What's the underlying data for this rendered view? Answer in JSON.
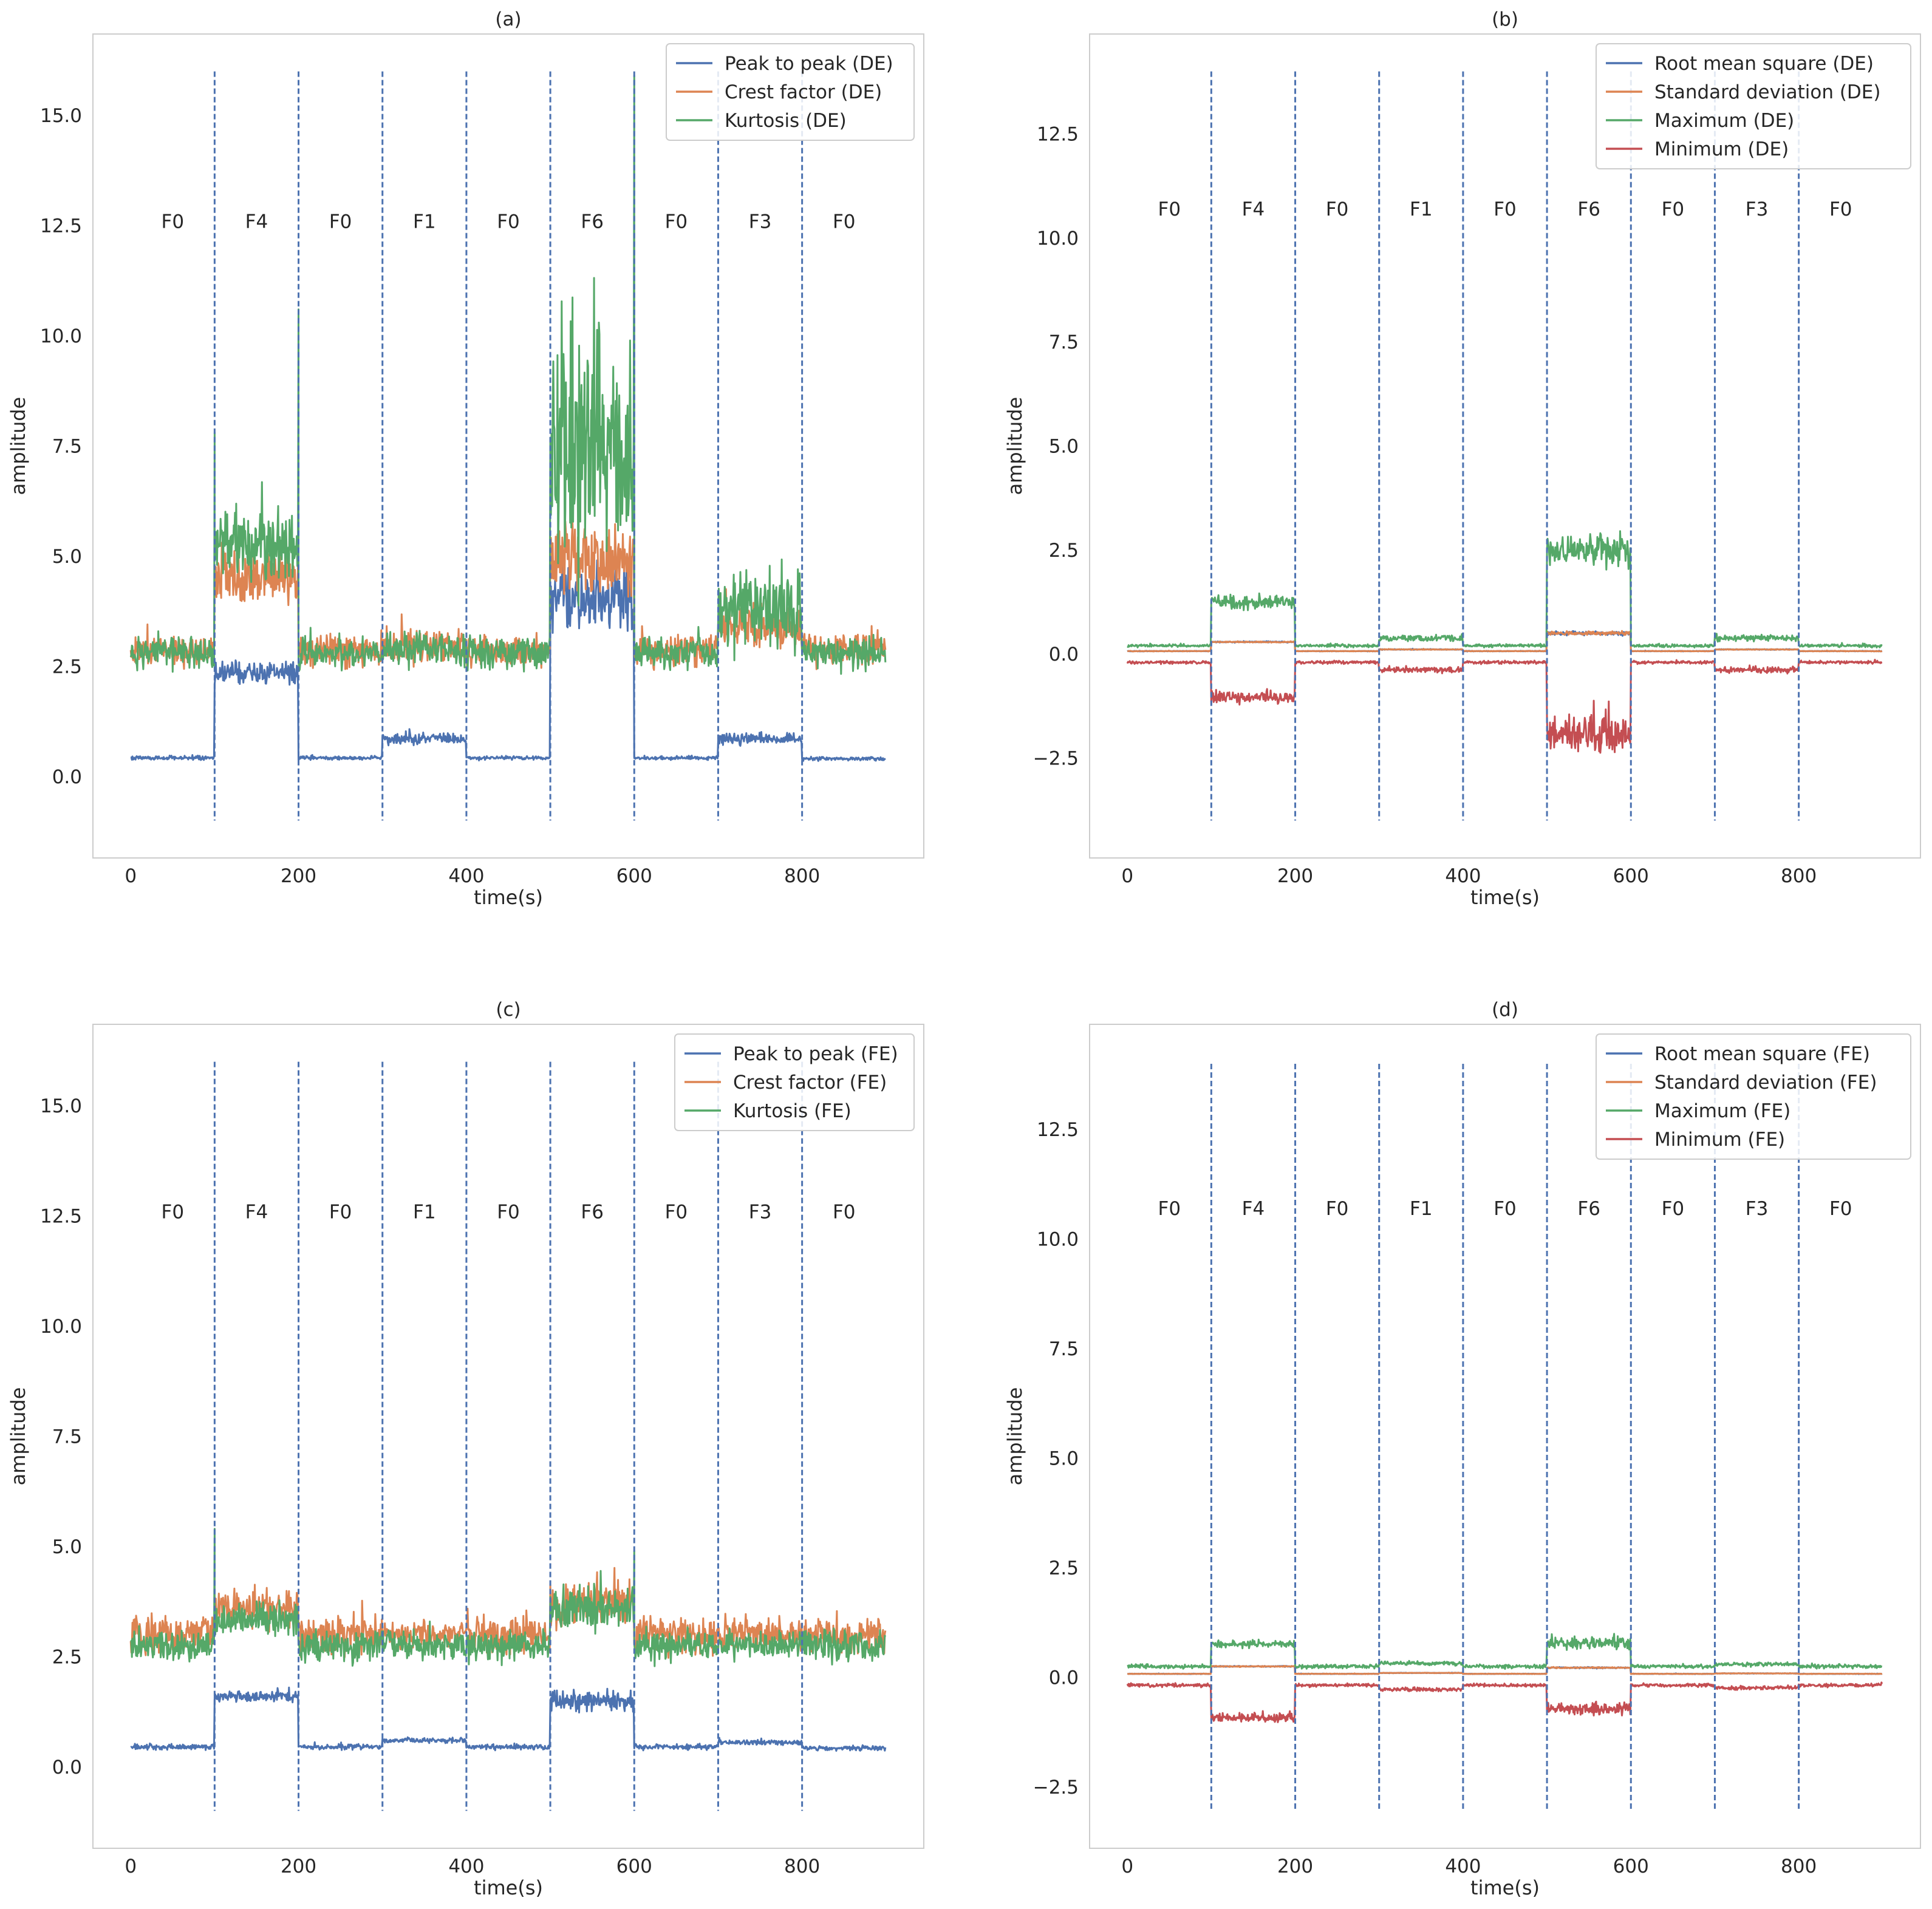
{
  "figure": {
    "panels": [
      "(a)",
      "(b)",
      "(c)",
      "(d)"
    ]
  },
  "chart_data": [
    {
      "type": "line",
      "title": "(a)",
      "xlabel": "time(s)",
      "ylabel": "amplitude",
      "xlim": [
        -45,
        945
      ],
      "ylim": [
        -1.85,
        16.85
      ],
      "xticks": [
        0,
        200,
        400,
        600,
        800
      ],
      "yticks": [
        0.0,
        2.5,
        5.0,
        7.5,
        10.0,
        12.5,
        15.0
      ],
      "ytick_labels": [
        "0.0",
        "2.5",
        "5.0",
        "7.5",
        "10.0",
        "12.5",
        "15.0"
      ],
      "grid": false,
      "legend_position": "top-right",
      "fault_boundaries": [
        100,
        200,
        300,
        400,
        500,
        600,
        700,
        800
      ],
      "boundary_range": [
        -1.0,
        16.0
      ],
      "segment_labels": [
        "F0",
        "F4",
        "F0",
        "F1",
        "F0",
        "F6",
        "F0",
        "F3",
        "F0"
      ],
      "segment_label_y": 12.6,
      "x_segments": [
        0,
        100,
        200,
        300,
        400,
        500,
        600,
        700,
        800,
        900
      ],
      "series": [
        {
          "name": "Peak to peak (DE)",
          "color": "#4C72B0",
          "segment_means": [
            0.42,
            2.35,
            0.42,
            0.85,
            0.42,
            4.1,
            0.42,
            0.85,
            0.4
          ],
          "segment_noise": [
            0.03,
            0.18,
            0.03,
            0.09,
            0.03,
            0.5,
            0.03,
            0.09,
            0.03
          ],
          "spikes": []
        },
        {
          "name": "Crest factor (DE)",
          "color": "#DD8452",
          "segment_means": [
            2.85,
            4.5,
            2.85,
            2.95,
            2.85,
            5.0,
            2.85,
            3.4,
            2.85
          ],
          "segment_noise": [
            0.25,
            0.4,
            0.25,
            0.28,
            0.25,
            0.6,
            0.25,
            0.35,
            0.25
          ],
          "spikes": []
        },
        {
          "name": "Kurtosis (DE)",
          "color": "#55A868",
          "segment_means": [
            2.8,
            5.3,
            2.8,
            2.9,
            2.8,
            7.5,
            2.8,
            3.8,
            2.8
          ],
          "segment_noise": [
            0.25,
            0.55,
            0.25,
            0.28,
            0.25,
            1.9,
            0.25,
            0.6,
            0.25
          ],
          "spikes": [
            [
              100,
              7.8
            ],
            [
              200,
              10.6
            ],
            [
              600,
              15.9
            ]
          ]
        }
      ]
    },
    {
      "type": "line",
      "title": "(b)",
      "xlabel": "time(s)",
      "ylabel": "amplitude",
      "xlim": [
        -45,
        945
      ],
      "ylim": [
        -4.9,
        14.9
      ],
      "xticks": [
        0,
        200,
        400,
        600,
        800
      ],
      "yticks": [
        -2.5,
        0.0,
        2.5,
        5.0,
        7.5,
        10.0,
        12.5
      ],
      "ytick_labels": [
        "−2.5",
        "0.0",
        "2.5",
        "5.0",
        "7.5",
        "10.0",
        "12.5"
      ],
      "grid": false,
      "legend_position": "top-right",
      "fault_boundaries": [
        100,
        200,
        300,
        400,
        500,
        600,
        700,
        800
      ],
      "boundary_range": [
        -4.0,
        14.0
      ],
      "segment_labels": [
        "F0",
        "F4",
        "F0",
        "F1",
        "F0",
        "F6",
        "F0",
        "F3",
        "F0"
      ],
      "segment_label_y": 10.7,
      "x_segments": [
        0,
        100,
        200,
        300,
        400,
        500,
        600,
        700,
        800,
        900
      ],
      "series": [
        {
          "name": "Root mean square (DE)",
          "color": "#4C72B0",
          "segment_means": [
            0.07,
            0.29,
            0.07,
            0.11,
            0.07,
            0.5,
            0.07,
            0.11,
            0.07
          ],
          "segment_noise": [
            0.005,
            0.01,
            0.005,
            0.006,
            0.005,
            0.03,
            0.005,
            0.006,
            0.005
          ],
          "spikes": []
        },
        {
          "name": "Standard deviation (DE)",
          "color": "#DD8452",
          "segment_means": [
            0.07,
            0.29,
            0.07,
            0.11,
            0.07,
            0.5,
            0.07,
            0.11,
            0.07
          ],
          "segment_noise": [
            0.005,
            0.01,
            0.005,
            0.006,
            0.005,
            0.03,
            0.005,
            0.006,
            0.005
          ],
          "spikes": []
        },
        {
          "name": "Maximum (DE)",
          "color": "#55A868",
          "segment_means": [
            0.2,
            1.25,
            0.2,
            0.38,
            0.2,
            2.5,
            0.2,
            0.38,
            0.2
          ],
          "segment_noise": [
            0.025,
            0.12,
            0.025,
            0.05,
            0.025,
            0.28,
            0.025,
            0.05,
            0.025
          ],
          "spikes": []
        },
        {
          "name": "Minimum (DE)",
          "color": "#C44E52",
          "segment_means": [
            -0.2,
            -1.05,
            -0.2,
            -0.38,
            -0.2,
            -1.95,
            -0.2,
            -0.38,
            -0.2
          ],
          "segment_noise": [
            0.025,
            0.1,
            0.025,
            0.05,
            0.025,
            0.3,
            0.025,
            0.05,
            0.025
          ],
          "spikes": []
        }
      ]
    },
    {
      "type": "line",
      "title": "(c)",
      "xlabel": "time(s)",
      "ylabel": "amplitude",
      "xlim": [
        -45,
        945
      ],
      "ylim": [
        -1.85,
        16.85
      ],
      "xticks": [
        0,
        200,
        400,
        600,
        800
      ],
      "yticks": [
        0.0,
        2.5,
        5.0,
        7.5,
        10.0,
        12.5,
        15.0
      ],
      "ytick_labels": [
        "0.0",
        "2.5",
        "5.0",
        "7.5",
        "10.0",
        "12.5",
        "15.0"
      ],
      "grid": false,
      "legend_position": "top-right",
      "fault_boundaries": [
        100,
        200,
        300,
        400,
        500,
        600,
        700,
        800
      ],
      "boundary_range": [
        -1.0,
        16.0
      ],
      "segment_labels": [
        "F0",
        "F4",
        "F0",
        "F1",
        "F0",
        "F6",
        "F0",
        "F3",
        "F0"
      ],
      "segment_label_y": 12.6,
      "x_segments": [
        0,
        100,
        200,
        300,
        400,
        500,
        600,
        700,
        800,
        900
      ],
      "series": [
        {
          "name": "Peak to peak (FE)",
          "color": "#4C72B0",
          "segment_means": [
            0.45,
            1.6,
            0.45,
            0.6,
            0.45,
            1.5,
            0.45,
            0.55,
            0.42
          ],
          "segment_noise": [
            0.04,
            0.08,
            0.04,
            0.04,
            0.04,
            0.15,
            0.04,
            0.04,
            0.04
          ],
          "spikes": []
        },
        {
          "name": "Crest factor (FE)",
          "color": "#DD8452",
          "segment_means": [
            3.0,
            3.6,
            3.0,
            3.0,
            3.0,
            3.7,
            3.0,
            3.0,
            3.0
          ],
          "segment_noise": [
            0.3,
            0.3,
            0.3,
            0.2,
            0.3,
            0.35,
            0.3,
            0.25,
            0.3
          ],
          "spikes": []
        },
        {
          "name": "Kurtosis (FE)",
          "color": "#55A868",
          "segment_means": [
            2.75,
            3.35,
            2.75,
            2.75,
            2.75,
            3.6,
            2.75,
            2.75,
            2.75
          ],
          "segment_noise": [
            0.25,
            0.25,
            0.25,
            0.2,
            0.25,
            0.35,
            0.25,
            0.2,
            0.25
          ],
          "spikes": [
            [
              100,
              5.4
            ],
            [
              600,
              4.9
            ]
          ]
        }
      ]
    },
    {
      "type": "line",
      "title": "(d)",
      "xlabel": "time(s)",
      "ylabel": "amplitude",
      "xlim": [
        -45,
        945
      ],
      "ylim": [
        -3.9,
        14.9
      ],
      "xticks": [
        0,
        200,
        400,
        600,
        800
      ],
      "yticks": [
        -2.5,
        0.0,
        2.5,
        5.0,
        7.5,
        10.0,
        12.5
      ],
      "ytick_labels": [
        "−2.5",
        "0.0",
        "2.5",
        "5.0",
        "7.5",
        "10.0",
        "12.5"
      ],
      "grid": false,
      "legend_position": "top-right",
      "fault_boundaries": [
        100,
        200,
        300,
        400,
        500,
        600,
        700,
        800
      ],
      "boundary_range": [
        -3.0,
        14.0
      ],
      "segment_labels": [
        "F0",
        "F4",
        "F0",
        "F1",
        "F0",
        "F6",
        "F0",
        "F3",
        "F0"
      ],
      "segment_label_y": 10.7,
      "x_segments": [
        0,
        100,
        200,
        300,
        400,
        500,
        600,
        700,
        800,
        900
      ],
      "series": [
        {
          "name": "Root mean square (FE)",
          "color": "#4C72B0",
          "segment_means": [
            0.08,
            0.25,
            0.08,
            0.1,
            0.08,
            0.22,
            0.08,
            0.09,
            0.08
          ],
          "segment_noise": [
            0.004,
            0.008,
            0.004,
            0.004,
            0.004,
            0.01,
            0.004,
            0.004,
            0.004
          ],
          "spikes": []
        },
        {
          "name": "Standard deviation (FE)",
          "color": "#DD8452",
          "segment_means": [
            0.08,
            0.25,
            0.08,
            0.1,
            0.08,
            0.22,
            0.08,
            0.09,
            0.08
          ],
          "segment_noise": [
            0.004,
            0.008,
            0.004,
            0.004,
            0.004,
            0.01,
            0.004,
            0.004,
            0.004
          ],
          "spikes": []
        },
        {
          "name": "Maximum (FE)",
          "color": "#55A868",
          "segment_means": [
            0.25,
            0.75,
            0.25,
            0.32,
            0.25,
            0.78,
            0.25,
            0.3,
            0.25
          ],
          "segment_noise": [
            0.03,
            0.06,
            0.03,
            0.03,
            0.03,
            0.1,
            0.03,
            0.03,
            0.03
          ],
          "spikes": []
        },
        {
          "name": "Minimum (FE)",
          "color": "#C44E52",
          "segment_means": [
            -0.18,
            -0.92,
            -0.18,
            -0.28,
            -0.18,
            -0.72,
            -0.18,
            -0.24,
            -0.18
          ],
          "segment_noise": [
            0.025,
            0.07,
            0.025,
            0.03,
            0.025,
            0.09,
            0.025,
            0.03,
            0.025
          ],
          "spikes": []
        }
      ]
    }
  ]
}
